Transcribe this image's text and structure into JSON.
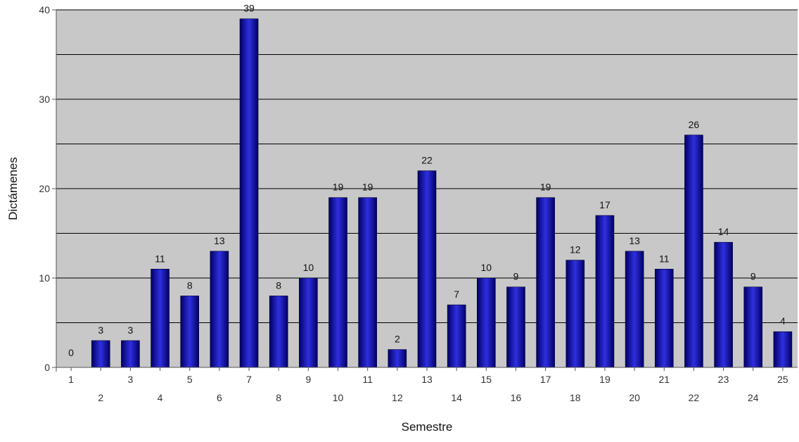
{
  "chart_data": {
    "type": "bar",
    "title": "",
    "xlabel": "Semestre",
    "ylabel": "Dictámenes",
    "ylim": [
      0,
      40
    ],
    "y_major_ticks": [
      0,
      10,
      20,
      30,
      40
    ],
    "gridlines_every": 5,
    "grid": true,
    "legend": "none",
    "categories": [
      "1",
      "2",
      "3",
      "4",
      "5",
      "6",
      "7",
      "8",
      "9",
      "10",
      "11",
      "12",
      "13",
      "14",
      "15",
      "16",
      "17",
      "18",
      "19",
      "20",
      "21",
      "22",
      "23",
      "24",
      "25"
    ],
    "values": [
      0,
      3,
      3,
      11,
      8,
      13,
      39,
      8,
      10,
      19,
      19,
      2,
      22,
      7,
      10,
      9,
      19,
      12,
      17,
      13,
      11,
      26,
      14,
      9,
      4
    ],
    "data_labels": [
      "0",
      "3",
      "3",
      "11",
      "8",
      "13",
      "39",
      "8",
      "10",
      "19",
      "19",
      "2",
      "22",
      "7",
      "10",
      "9",
      "19",
      "12",
      "17",
      "13",
      "11",
      "26",
      "14",
      "9",
      "4"
    ],
    "colors": {
      "plot_background": "#c8c8c8",
      "bar_dark": "#000066",
      "bar_light": "#2f2fe0",
      "gridline": "#000000"
    }
  }
}
